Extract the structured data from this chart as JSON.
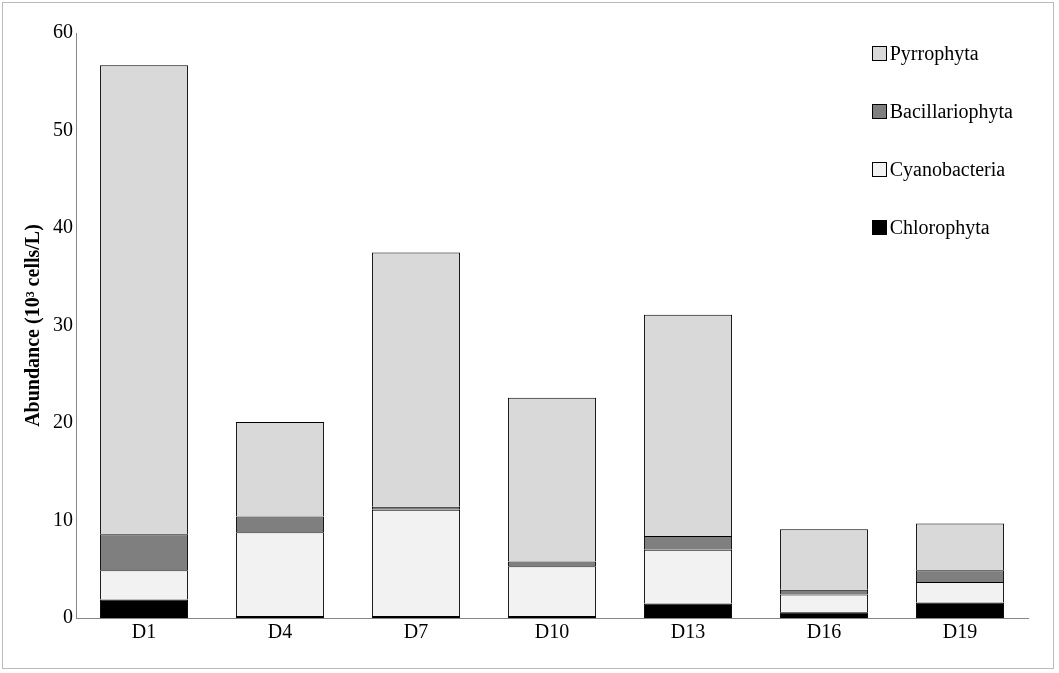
{
  "chart_data": {
    "type": "bar",
    "stacked": true,
    "ylabel": "Abundance (10³ cells/L)",
    "categories": [
      "D1",
      "D4",
      "D7",
      "D10",
      "D13",
      "D16",
      "D19"
    ],
    "series": [
      {
        "name": "Chlorophyta",
        "color": "#000000",
        "values": [
          1.9,
          0.2,
          0.2,
          0.2,
          1.5,
          0.6,
          1.6
        ]
      },
      {
        "name": "Cyanobacteria",
        "color": "#f2f2f2",
        "values": [
          3.0,
          8.6,
          10.9,
          5.1,
          5.5,
          1.8,
          2.1
        ]
      },
      {
        "name": "Bacillariophyta",
        "color": "#7f7f7f",
        "values": [
          3.7,
          1.6,
          0.3,
          0.5,
          1.4,
          0.5,
          1.2
        ]
      },
      {
        "name": "Pyrrophyta",
        "color": "#d9d9d9",
        "values": [
          48.1,
          9.7,
          26.1,
          16.8,
          22.7,
          6.2,
          4.8
        ]
      }
    ],
    "ylim": [
      0,
      60
    ],
    "yticks": [
      0,
      10,
      20,
      30,
      40,
      50,
      60
    ],
    "grid": false,
    "legend": "top right"
  }
}
